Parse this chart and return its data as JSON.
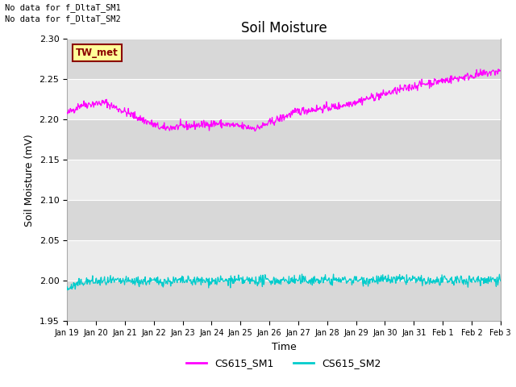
{
  "title": "Soil Moisture",
  "xlabel": "Time",
  "ylabel": "Soil Moisture (mV)",
  "ylim": [
    1.95,
    2.3
  ],
  "yticks": [
    1.95,
    2.0,
    2.05,
    2.1,
    2.15,
    2.2,
    2.25,
    2.3
  ],
  "fig_bg_color": "#ffffff",
  "plot_bg_color": "#e8e8e8",
  "band_color_light": "#ebebeb",
  "band_color_dark": "#d8d8d8",
  "line1_color": "#ff00ff",
  "line2_color": "#00cccc",
  "legend_labels": [
    "CS615_SM1",
    "CS615_SM2"
  ],
  "no_data_text1": "No data for f_DltaT_SM1",
  "no_data_text2": "No data for f_DltaT_SM2",
  "tw_met_label": "TW_met",
  "tw_met_box_color": "#ffff99",
  "tw_met_box_edge": "#8b0000",
  "tw_met_text_color": "#8b0000",
  "n_points": 800,
  "xtick_labels": [
    "Jan 19",
    "Jan 20",
    "Jan 21",
    "Jan 22",
    "Jan 23",
    "Jan 24",
    "Jan 25",
    "Jan 26",
    "Jan 27",
    "Jan 28",
    "Jan 29",
    "Jan 30",
    "Jan 31",
    "Feb 1",
    "Feb 2",
    "Feb 3"
  ],
  "title_fontsize": 12,
  "axis_label_fontsize": 9,
  "tick_fontsize": 8,
  "legend_fontsize": 9,
  "figwidth": 6.4,
  "figheight": 4.8,
  "dpi": 100
}
